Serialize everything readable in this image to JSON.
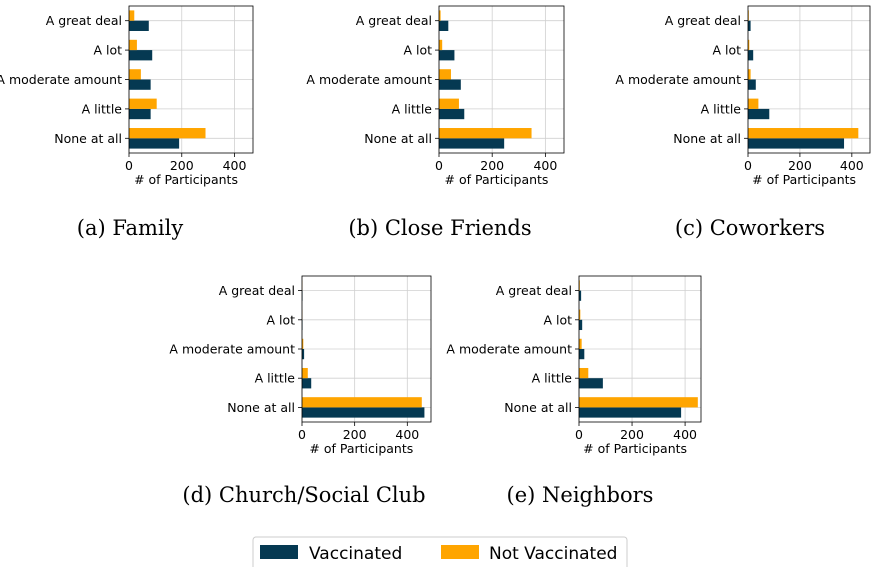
{
  "colors": {
    "vaccinated": "#053952",
    "not_vaccinated": "#ffa500"
  },
  "legend": {
    "items": [
      "Vaccinated",
      "Not Vaccinated"
    ]
  },
  "chart_data": [
    {
      "type": "bar",
      "orientation": "horizontal",
      "caption": "(a) Family",
      "categories": [
        "A great deal",
        "A lot",
        "A moderate amount",
        "A little",
        "None at all"
      ],
      "series": [
        {
          "name": "Vaccinated",
          "values": [
            75,
            88,
            82,
            82,
            190
          ]
        },
        {
          "name": "Not Vaccinated",
          "values": [
            20,
            30,
            45,
            105,
            290
          ]
        }
      ],
      "xlabel": "# of Participants",
      "xlim": [
        0,
        470
      ],
      "xticks": [
        0,
        200,
        400
      ],
      "grid": true
    },
    {
      "type": "bar",
      "orientation": "horizontal",
      "caption": "(b) Close Friends",
      "categories": [
        "A great deal",
        "A lot",
        "A moderate amount",
        "A little",
        "None at all"
      ],
      "series": [
        {
          "name": "Vaccinated",
          "values": [
            35,
            58,
            82,
            95,
            245
          ]
        },
        {
          "name": "Not Vaccinated",
          "values": [
            6,
            12,
            45,
            75,
            348
          ]
        }
      ],
      "xlabel": "# of Participants",
      "xlim": [
        0,
        470
      ],
      "xticks": [
        0,
        200,
        400
      ],
      "grid": true
    },
    {
      "type": "bar",
      "orientation": "horizontal",
      "caption": "(c) Coworkers",
      "categories": [
        "A great deal",
        "A lot",
        "A moderate amount",
        "A little",
        "None at all"
      ],
      "series": [
        {
          "name": "Vaccinated",
          "values": [
            10,
            20,
            30,
            82,
            370
          ]
        },
        {
          "name": "Not Vaccinated",
          "values": [
            3,
            5,
            10,
            40,
            425
          ]
        }
      ],
      "xlabel": "# of Participants",
      "xlim": [
        0,
        470
      ],
      "xticks": [
        0,
        200,
        400
      ],
      "grid": true
    },
    {
      "type": "bar",
      "orientation": "horizontal",
      "caption": "(d) Church/Social Club",
      "categories": [
        "A great deal",
        "A lot",
        "A moderate amount",
        "A little",
        "None at all"
      ],
      "series": [
        {
          "name": "Vaccinated",
          "values": [
            2,
            2,
            8,
            35,
            465
          ]
        },
        {
          "name": "Not Vaccinated",
          "values": [
            1,
            1,
            5,
            22,
            455
          ]
        }
      ],
      "xlabel": "# of Participants",
      "xlim": [
        0,
        490
      ],
      "xticks": [
        0,
        200,
        400
      ],
      "grid": true
    },
    {
      "type": "bar",
      "orientation": "horizontal",
      "caption": "(e) Neighbors",
      "categories": [
        "A great deal",
        "A lot",
        "A moderate amount",
        "A little",
        "None at all"
      ],
      "series": [
        {
          "name": "Vaccinated",
          "values": [
            8,
            12,
            20,
            90,
            385
          ]
        },
        {
          "name": "Not Vaccinated",
          "values": [
            3,
            5,
            10,
            35,
            448
          ]
        }
      ],
      "xlabel": "# of Participants",
      "xlim": [
        0,
        460
      ],
      "xticks": [
        0,
        200,
        400
      ],
      "grid": true
    }
  ]
}
